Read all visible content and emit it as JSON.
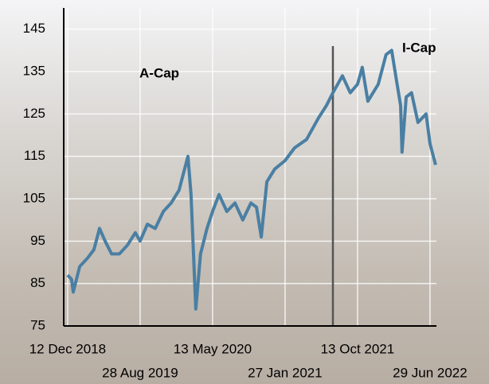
{
  "chart_data": {
    "type": "line",
    "x": [
      "2018-12-12",
      "2018-12-26",
      "2019-01-01",
      "2019-01-24",
      "2019-02-21",
      "2019-03-16",
      "2019-04-05",
      "2019-04-25",
      "2019-05-18",
      "2019-06-15",
      "2019-07-13",
      "2019-08-11",
      "2019-08-28",
      "2019-09-23",
      "2019-10-21",
      "2019-11-19",
      "2019-12-17",
      "2020-01-14",
      "2020-02-15",
      "2020-02-26",
      "2020-03-14",
      "2020-03-31",
      "2020-04-23",
      "2020-05-13",
      "2020-06-05",
      "2020-07-03",
      "2020-08-01",
      "2020-08-29",
      "2020-09-27",
      "2020-10-17",
      "2020-11-03",
      "2020-11-23",
      "2020-12-21",
      "2021-01-27",
      "2021-03-02",
      "2021-04-14",
      "2021-05-26",
      "2021-06-24",
      "2021-07-17",
      "2021-08-20",
      "2021-09-17",
      "2021-10-13",
      "2021-10-30",
      "2021-11-19",
      "2021-12-26",
      "2022-01-23",
      "2022-02-12",
      "2022-03-01",
      "2022-03-16",
      "2022-03-21",
      "2022-04-05",
      "2022-04-24",
      "2022-05-17",
      "2022-06-15",
      "2022-06-29",
      "2022-07-19"
    ],
    "series": [
      {
        "color": "#4a7fa3",
        "values": [
          87,
          86,
          83,
          89,
          91,
          93,
          98,
          95,
          92,
          92,
          94,
          97,
          95,
          99,
          98,
          102,
          104,
          107,
          115,
          106,
          79,
          92,
          98,
          102,
          106,
          102,
          104,
          100,
          104,
          103,
          96,
          109,
          112,
          114,
          117,
          119,
          124,
          127,
          130,
          134,
          130,
          132,
          136,
          128,
          132,
          139,
          140,
          133,
          127,
          116,
          129,
          130,
          123,
          125,
          118,
          113
        ]
      }
    ],
    "xlim": [
      "2018-11-28",
      "2022-07-22"
    ],
    "xticks": [
      {
        "value": "2018-12-12",
        "label": "12 Dec 2018"
      },
      {
        "value": "2019-08-28",
        "label": "28 Aug 2019"
      },
      {
        "value": "2020-05-13",
        "label": "13 May 2020"
      },
      {
        "value": "2021-01-27",
        "label": "27 Jan 2021"
      },
      {
        "value": "2021-10-13",
        "label": "13 Oct 2021"
      },
      {
        "value": "2022-06-29",
        "label": "29 Jun 2022"
      }
    ],
    "ylim": [
      75,
      150
    ],
    "yticks": [
      75,
      85,
      95,
      105,
      115,
      125,
      135,
      145
    ],
    "grid": true,
    "vline": "2021-07-17",
    "annotations": [
      "A-Cap",
      "I-Cap"
    ]
  }
}
